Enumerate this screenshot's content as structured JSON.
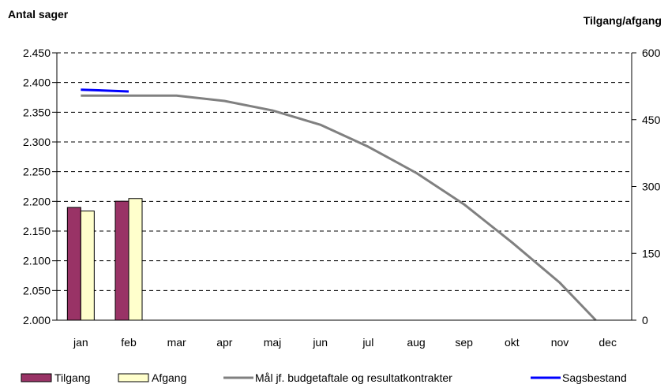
{
  "chart_data": {
    "type": "bar",
    "title": "",
    "ylabel_left": "Antal sager",
    "ylabel_right": "Tilgang/afgang",
    "categories": [
      "jan",
      "feb",
      "mar",
      "apr",
      "maj",
      "jun",
      "jul",
      "aug",
      "sep",
      "okt",
      "nov",
      "dec"
    ],
    "y_left": {
      "min": 2000,
      "max": 2450,
      "step": 50,
      "tick_labels": [
        "2.000",
        "2.050",
        "2.100",
        "2.150",
        "2.200",
        "2.250",
        "2.300",
        "2.350",
        "2.400",
        "2.450"
      ]
    },
    "y_right": {
      "min": 0,
      "max": 600,
      "step": 150,
      "tick_labels": [
        "0",
        "150",
        "300",
        "450",
        "600"
      ]
    },
    "grid": "dashed horizontal",
    "legend_position": "bottom",
    "series": [
      {
        "name": "Tilgang",
        "type": "bar",
        "axis": "right",
        "color": "#993366",
        "values": [
          253,
          267,
          null,
          null,
          null,
          null,
          null,
          null,
          null,
          null,
          null,
          null
        ]
      },
      {
        "name": "Afgang",
        "type": "bar",
        "axis": "right",
        "color": "#FFFFCC",
        "values": [
          245,
          273,
          null,
          null,
          null,
          null,
          null,
          null,
          null,
          null,
          null,
          null
        ]
      },
      {
        "name": "Mål jf. budgetaftale og resultatkontrakter",
        "type": "line",
        "axis": "left",
        "color": "#808080",
        "x": [
          1,
          2,
          3,
          4,
          5,
          6,
          7,
          8,
          9,
          10,
          11,
          11.75
        ],
        "values": [
          2378,
          2378,
          2378,
          2369,
          2353,
          2329,
          2292,
          2248,
          2195,
          2131,
          2063,
          2000
        ]
      },
      {
        "name": "Sagsbestand",
        "type": "line",
        "axis": "left",
        "color": "#0000FF",
        "x": [
          1,
          2
        ],
        "values": [
          2388,
          2385
        ]
      }
    ]
  }
}
